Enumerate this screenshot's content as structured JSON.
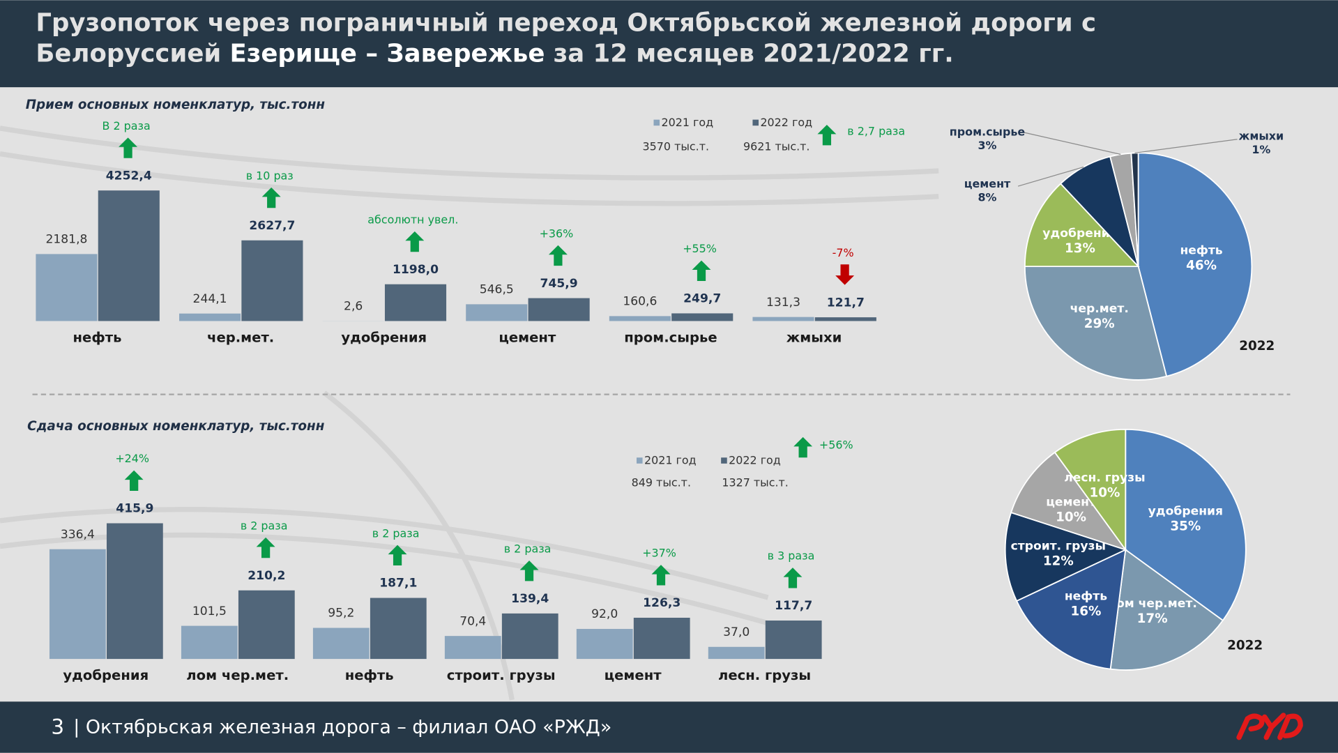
{
  "header": {
    "title_line1": "Грузопоток через пограничный переход Октябрьской железной дороги с",
    "title_line2": [
      "Белоруссией",
      "Езерище – Завережье",
      "за 12 месяцев 2021/2022 гг."
    ]
  },
  "chart_data": [
    {
      "type": "bar",
      "title": "Прием основных номенклатур, тыс.тонн",
      "categories": [
        "нефть",
        "чер.мет.",
        "удобрения",
        "цемент",
        "пром.сырье",
        "жмыхи"
      ],
      "series": [
        {
          "name": "2021 год",
          "color": "#8ba5bd",
          "values": [
            2181.8,
            244.1,
            2.6,
            546.5,
            160.6,
            131.3
          ],
          "value_labels": [
            "2181,8",
            "244,1",
            "2,6",
            "546,5",
            "160,6",
            "131,3"
          ],
          "total_label": "3570 тыс.т."
        },
        {
          "name": "2022 год",
          "color": "#51667a",
          "values": [
            4252.4,
            2627.7,
            1198.0,
            745.9,
            249.7,
            121.7
          ],
          "value_labels": [
            "4252,4",
            "2627,7",
            "1198,0",
            "745,9",
            "249,7",
            "121,7"
          ],
          "total_label": "9621 тыс.т."
        }
      ],
      "change_labels": [
        "В 2 раза",
        "в 10 раз",
        "абсолютн увел.",
        "+36%",
        "+55%",
        "-7%"
      ],
      "change_directions": [
        "up",
        "up",
        "up",
        "up",
        "up",
        "down"
      ],
      "total_change_label": "в 2,7 раза",
      "total_change_direction": "up",
      "up_color": "#0a9a48",
      "down_color": "#c00000"
    },
    {
      "type": "pie",
      "label": "2022",
      "categories": [
        "нефть",
        "чер.мет.",
        "удобрения",
        "цемент",
        "пром.сырье",
        "жмыхи"
      ],
      "values": [
        46,
        29,
        13,
        8,
        3,
        1
      ],
      "value_labels": [
        "46%",
        "29%",
        "13%",
        "8%",
        "3%",
        "1%"
      ],
      "colors": [
        "#4f81bd",
        "#7b98ae",
        "#9bbb59",
        "#17375e",
        "#a6a6a6",
        "#22344c"
      ]
    },
    {
      "type": "bar",
      "title": "Сдача основных номенклатур, тыс.тонн",
      "categories": [
        "удобрения",
        "лом чер.мет.",
        "нефть",
        "строит. грузы",
        "цемент",
        "лесн. грузы"
      ],
      "series": [
        {
          "name": "2021 год",
          "color": "#8ba5bd",
          "values": [
            336.4,
            101.5,
            95.2,
            70.4,
            92.0,
            37.0
          ],
          "value_labels": [
            "336,4",
            "101,5",
            "95,2",
            "70,4",
            "92,0",
            "37,0"
          ],
          "total_label": "849 тыс.т."
        },
        {
          "name": "2022 год",
          "color": "#51667a",
          "values": [
            415.9,
            210.2,
            187.1,
            139.4,
            126.3,
            117.7
          ],
          "value_labels": [
            "415,9",
            "210,2",
            "187,1",
            "139,4",
            "126,3",
            "117,7"
          ],
          "total_label": "1327 тыс.т."
        }
      ],
      "change_labels": [
        "+24%",
        "в 2 раза",
        "в 2 раза",
        "в 2 раза",
        "+37%",
        "в 3 раза"
      ],
      "change_directions": [
        "up",
        "up",
        "up",
        "up",
        "up",
        "up"
      ],
      "total_change_label": "+56%",
      "total_change_direction": "up",
      "up_color": "#0a9a48",
      "down_color": "#c00000"
    },
    {
      "type": "pie",
      "label": "2022",
      "categories": [
        "удобрения",
        "лом чер.мет.",
        "нефть",
        "строит. грузы",
        "цемент",
        "лесн. грузы"
      ],
      "values": [
        35,
        17,
        16,
        12,
        10,
        10
      ],
      "value_labels": [
        "35%",
        "17%",
        "16%",
        "12%",
        "10%",
        "10%"
      ],
      "colors": [
        "#4f81bd",
        "#7b98ae",
        "#2f5592",
        "#17375e",
        "#a6a6a6",
        "#9bbb59"
      ]
    }
  ],
  "footer": {
    "page": "3",
    "text": "| Октябрьская железная дорога – филиал ОАО «РЖД»"
  }
}
